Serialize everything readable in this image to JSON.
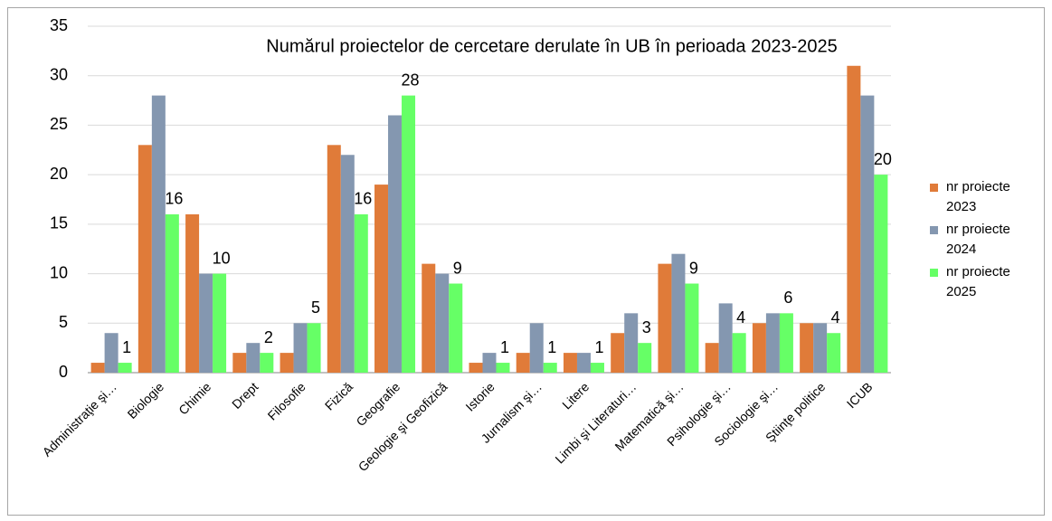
{
  "chart_data": {
    "type": "bar",
    "title": "Numărul proiectelor de cercetare derulate în UB în perioada 2023-2025",
    "categories": [
      "Administraţie şi…",
      "Biologie",
      "Chimie",
      "Drept",
      "Filosofie",
      "Fizică",
      "Geografie",
      "Geologie şi Geofizică",
      "Istorie",
      "Jurnalism şi…",
      "Litere",
      "Limbi şi Literaturi…",
      "Matematică şi…",
      "Psihologie şi…",
      "Sociologie şi…",
      "Ştiinţe politice",
      "ICUB"
    ],
    "series": [
      {
        "name": "nr proiecte 2023",
        "color": "#e07b39",
        "values": [
          1,
          23,
          16,
          2,
          2,
          23,
          19,
          11,
          1,
          2,
          2,
          4,
          11,
          3,
          5,
          5,
          31
        ]
      },
      {
        "name": "nr proiecte 2024",
        "color": "#8497b0",
        "values": [
          4,
          28,
          10,
          3,
          5,
          22,
          26,
          10,
          2,
          5,
          2,
          6,
          12,
          7,
          6,
          5,
          28
        ]
      },
      {
        "name": "nr proiecte 2025",
        "color": "#66ff66",
        "values": [
          1,
          16,
          10,
          2,
          5,
          16,
          28,
          9,
          1,
          1,
          1,
          3,
          9,
          4,
          6,
          4,
          20
        ],
        "data_labels": true
      }
    ],
    "ylim": [
      0,
      35
    ],
    "yticks": [
      0,
      5,
      10,
      15,
      20,
      25,
      30,
      35
    ],
    "grid": true,
    "legend": "right"
  }
}
